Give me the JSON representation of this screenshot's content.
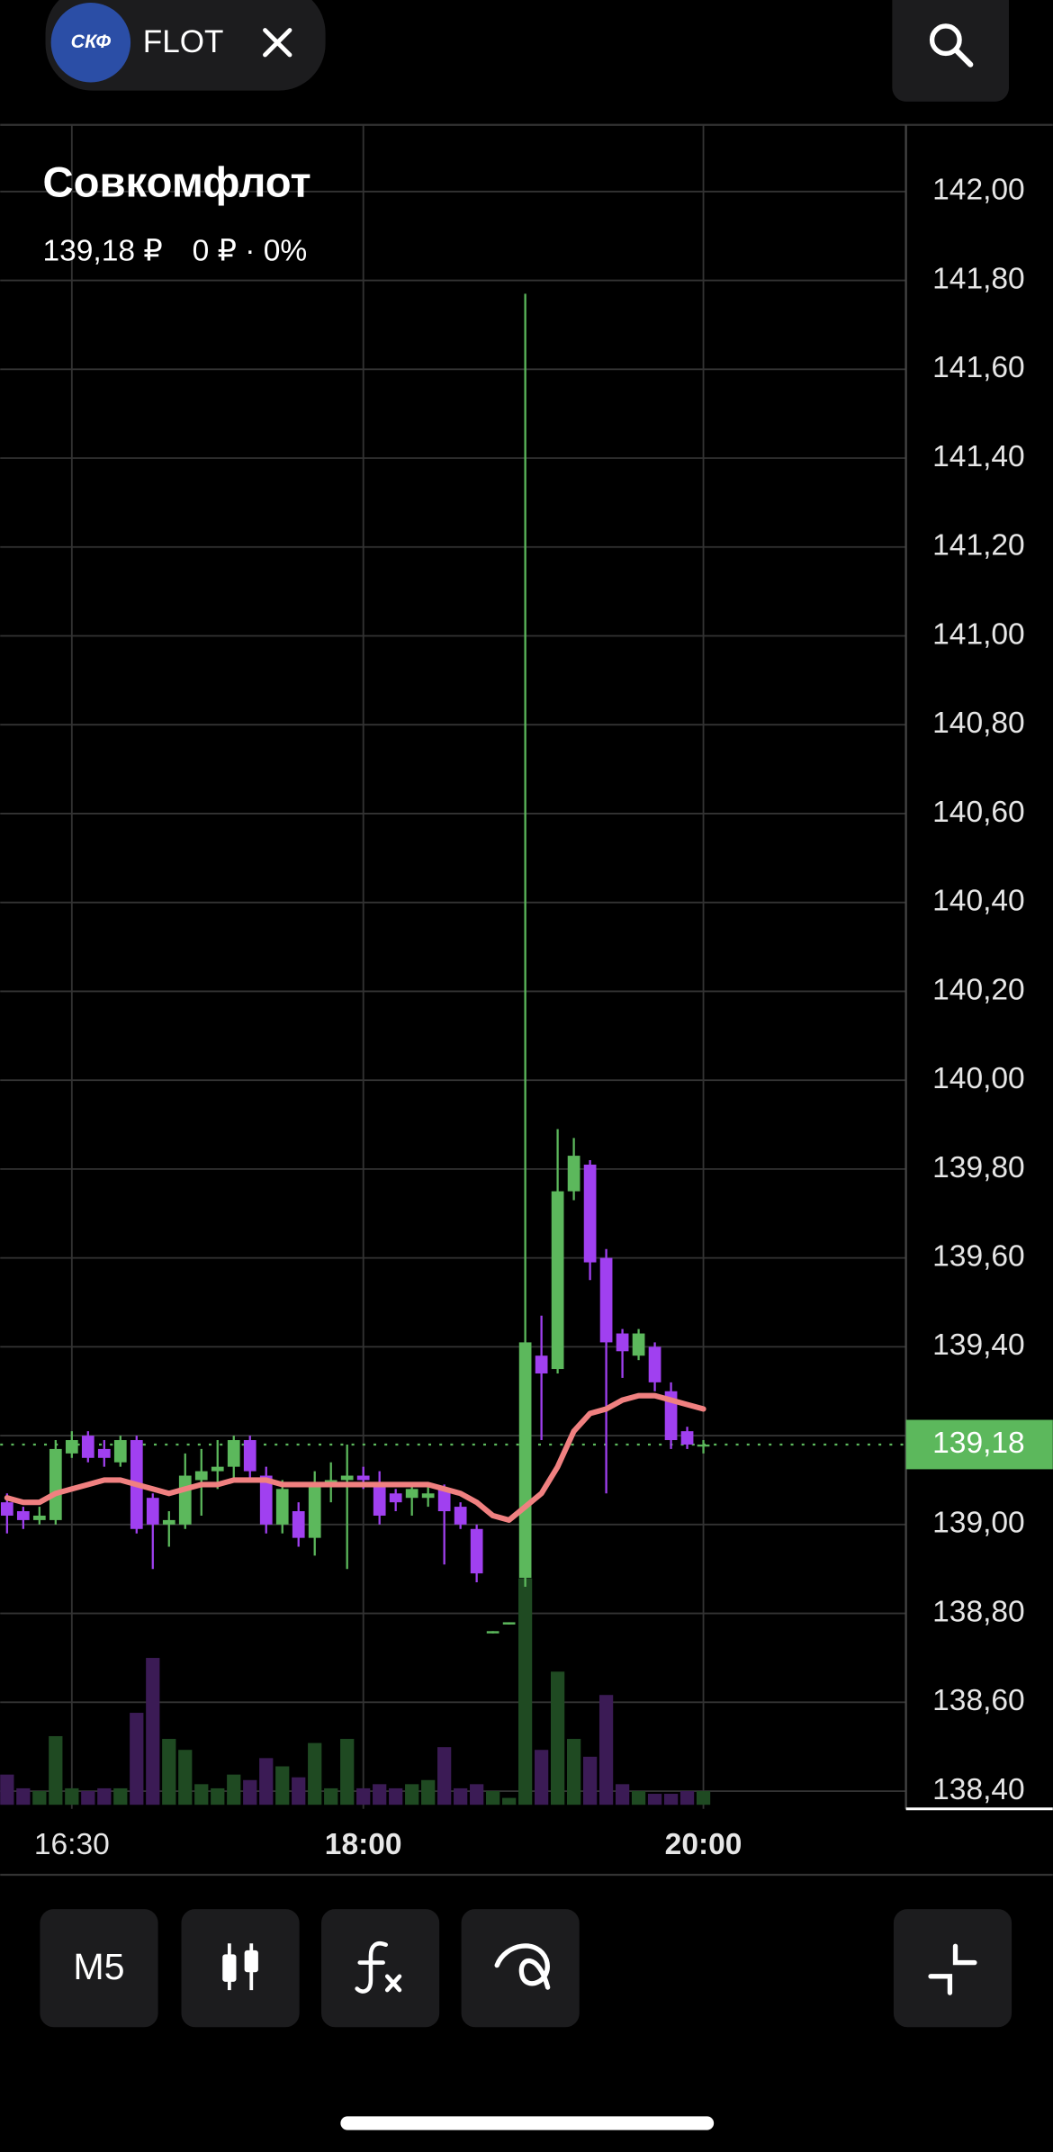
{
  "header": {
    "logo": "СКФ",
    "ticker": "FLOT"
  },
  "instrument": {
    "name": "Совкомфлот",
    "price": "139,18 ₽",
    "change": "0 ₽ · 0%"
  },
  "toolbar": {
    "interval": "M5"
  },
  "chart_data": {
    "type": "candlestick",
    "categories": [
      null,
      null,
      null,
      null,
      "16:30",
      null,
      null,
      null,
      null,
      null,
      null,
      null,
      null,
      null,
      null,
      null,
      null,
      null,
      null,
      null,
      null,
      null,
      "18:00",
      null,
      null,
      null,
      null,
      null,
      null,
      null,
      null,
      null,
      null,
      null,
      null,
      null,
      null,
      null,
      null,
      null,
      null,
      null,
      null,
      "20:00"
    ],
    "open": [
      139.05,
      139.03,
      139.01,
      139.01,
      139.16,
      139.2,
      139.17,
      139.14,
      139.19,
      139.06,
      139.0,
      139.0,
      139.1,
      139.12,
      139.13,
      139.19,
      139.11,
      139.0,
      139.03,
      138.97,
      139.09,
      139.1,
      139.11,
      139.09,
      139.07,
      139.06,
      139.06,
      139.08,
      139.04,
      138.99,
      138.755,
      138.775,
      138.88,
      139.38,
      139.35,
      139.75,
      139.81,
      139.6,
      139.43,
      139.38,
      139.4,
      139.3,
      139.21,
      139.18
    ],
    "high": [
      139.07,
      139.04,
      139.04,
      139.19,
      139.21,
      139.21,
      139.19,
      139.2,
      139.2,
      139.07,
      139.03,
      139.16,
      139.17,
      139.19,
      139.2,
      139.2,
      139.13,
      139.1,
      139.05,
      139.12,
      139.14,
      139.18,
      139.13,
      139.12,
      139.08,
      139.09,
      139.09,
      139.09,
      139.05,
      139.0,
      138.76,
      138.78,
      141.77,
      139.47,
      139.89,
      139.87,
      139.82,
      139.62,
      139.44,
      139.44,
      139.41,
      139.32,
      139.22,
      139.19
    ],
    "low": [
      138.98,
      138.99,
      139.0,
      139.0,
      139.15,
      139.14,
      139.13,
      139.13,
      138.98,
      138.9,
      138.95,
      138.99,
      139.02,
      139.08,
      139.1,
      139.1,
      138.98,
      138.98,
      138.95,
      138.93,
      139.05,
      138.9,
      139.08,
      139.0,
      139.03,
      139.02,
      139.04,
      138.91,
      138.99,
      138.87,
      138.755,
      138.775,
      138.86,
      139.19,
      139.34,
      139.73,
      139.55,
      139.07,
      139.33,
      139.37,
      139.3,
      139.17,
      139.17,
      139.16
    ],
    "close": [
      139.02,
      139.01,
      139.02,
      139.17,
      139.19,
      139.15,
      139.15,
      139.19,
      138.99,
      139.0,
      139.01,
      139.11,
      139.12,
      139.13,
      139.19,
      139.12,
      139.0,
      139.08,
      138.97,
      139.09,
      139.1,
      139.11,
      139.1,
      139.02,
      139.05,
      139.08,
      139.07,
      139.03,
      139.0,
      138.89,
      138.76,
      138.78,
      139.41,
      139.34,
      139.75,
      139.83,
      139.59,
      139.41,
      139.39,
      139.43,
      139.32,
      139.19,
      139.18,
      139.18
    ],
    "volume": [
      22,
      12,
      10,
      50,
      12,
      10,
      12,
      12,
      67,
      107,
      48,
      40,
      15,
      12,
      22,
      18,
      34,
      28,
      20,
      45,
      12,
      48,
      12,
      15,
      12,
      15,
      18,
      42,
      12,
      15,
      10,
      5,
      165,
      40,
      97,
      48,
      35,
      80,
      15,
      10,
      8,
      8,
      10,
      10
    ],
    "ma": {
      "color": "#f08080",
      "values": [
        139.06,
        139.05,
        139.05,
        139.07,
        139.08,
        139.09,
        139.1,
        139.1,
        139.09,
        139.08,
        139.07,
        139.08,
        139.09,
        139.09,
        139.1,
        139.1,
        139.1,
        139.09,
        139.09,
        139.09,
        139.09,
        139.09,
        139.09,
        139.09,
        139.09,
        139.09,
        139.09,
        139.08,
        139.07,
        139.05,
        139.02,
        139.01,
        139.04,
        139.07,
        139.13,
        139.21,
        139.25,
        139.26,
        139.28,
        139.29,
        139.29,
        139.28,
        139.27,
        139.26
      ]
    },
    "up_color": "#5cb85c",
    "down_color": "#a040f0",
    "volume_up_color": "#1f4a22",
    "volume_down_color": "#3b1b55",
    "ylim": [
      138.36,
      142.15
    ],
    "yticks": [
      {
        "value": 142.0,
        "label": "142,00"
      },
      {
        "value": 141.8,
        "label": "141,80"
      },
      {
        "value": 141.6,
        "label": "141,60"
      },
      {
        "value": 141.4,
        "label": "141,40"
      },
      {
        "value": 141.2,
        "label": "141,20"
      },
      {
        "value": 141.0,
        "label": "141,00"
      },
      {
        "value": 140.8,
        "label": "140,80"
      },
      {
        "value": 140.6,
        "label": "140,60"
      },
      {
        "value": 140.4,
        "label": "140,40"
      },
      {
        "value": 140.2,
        "label": "140,20"
      },
      {
        "value": 140.0,
        "label": "140,00"
      },
      {
        "value": 139.8,
        "label": "139,80"
      },
      {
        "value": 139.6,
        "label": "139,60"
      },
      {
        "value": 139.4,
        "label": "139,40"
      },
      {
        "value": 139.2,
        "label": "139,20"
      },
      {
        "value": 139.0,
        "label": "139,00"
      },
      {
        "value": 138.8,
        "label": "138,80"
      },
      {
        "value": 138.6,
        "label": "138,60"
      },
      {
        "value": 138.4,
        "label": "138,40"
      }
    ],
    "last_price": {
      "value": 139.18,
      "label": "139,18",
      "color": "#5cb85c"
    },
    "grid": true
  }
}
